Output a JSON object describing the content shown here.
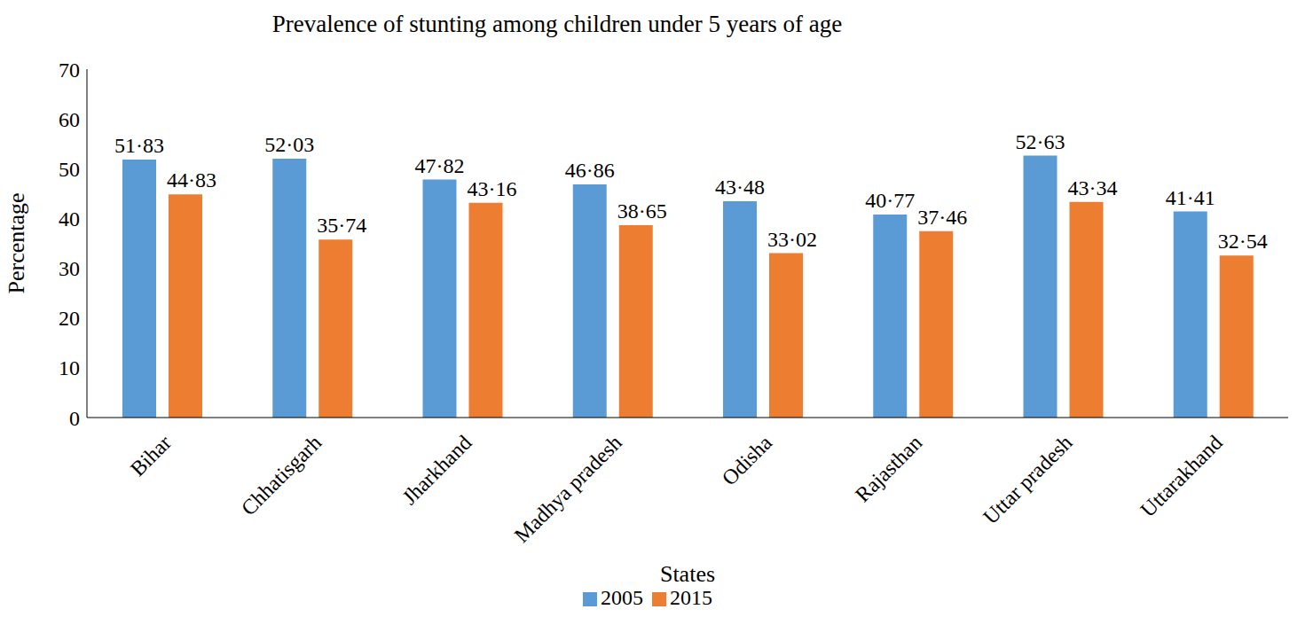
{
  "chart_data": {
    "type": "bar",
    "title": "Prevalence of stunting among children under 5 years of age",
    "x_label": "States",
    "y_label": "Percentage",
    "categories": [
      "Bihar",
      "Chhatisgarh",
      "Jharkhand",
      "Madhya pradesh",
      "Odisha",
      "Rajasthan",
      "Uttar pradesh",
      "Uttarakhand"
    ],
    "series": [
      {
        "name": "2005",
        "color": "#5b9bd5",
        "values": [
          51.83,
          52.03,
          47.82,
          46.86,
          43.48,
          40.77,
          52.63,
          41.41
        ],
        "value_labels": [
          "51·83",
          "52·03",
          "47·82",
          "46·86",
          "43·48",
          "40·77",
          "52·63",
          "41·41"
        ]
      },
      {
        "name": "2015",
        "color": "#ed7d31",
        "values": [
          44.83,
          35.74,
          43.16,
          38.65,
          33.02,
          37.46,
          43.34,
          32.54
        ],
        "value_labels": [
          "44·83",
          "35·74",
          "43·16",
          "38·65",
          "33·02",
          "37·46",
          "43·34",
          "32·54"
        ]
      }
    ],
    "ylim": [
      0,
      70
    ],
    "yticks": [
      0,
      10,
      20,
      30,
      40,
      50,
      60,
      70
    ],
    "grid": false,
    "legend": "bottom",
    "data_labels": true
  }
}
